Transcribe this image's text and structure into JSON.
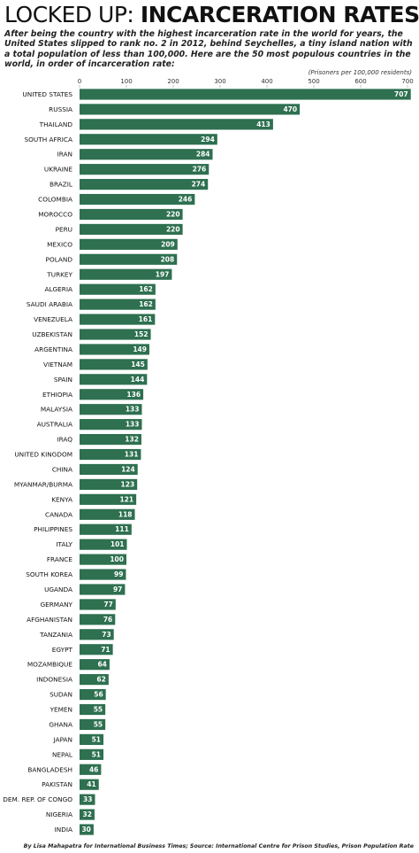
{
  "chart_data": {
    "type": "bar",
    "orientation": "horizontal",
    "title": "LOCKED UP:",
    "title_emphasis": "INCARCERATION RATES",
    "subtitle": "After being the country with the highest incarceration rate in the world for years, the United States slipped to rank no. 2 in 2012, behind Seychelles, a tiny island nation with a total population of less than 100,000. Here are the 50 most populous countries in the world, in order of incarceration rate:",
    "axis_label": "(Prisoners per 100,000 residents)",
    "categories": [
      "UNITED STATES",
      "RUSSIA",
      "THAILAND",
      "SOUTH AFRICA",
      "IRAN",
      "UKRAINE",
      "BRAZIL",
      "COLOMBIA",
      "MOROCCO",
      "PERU",
      "MEXICO",
      "POLAND",
      "TURKEY",
      "ALGERIA",
      "SAUDI ARABIA",
      "VENEZUELA",
      "UZBEKISTAN",
      "ARGENTINA",
      "VIETNAM",
      "SPAIN",
      "ETHIOPIA",
      "MALAYSIA",
      "AUSTRALIA",
      "IRAQ",
      "UNITED KINGDOM",
      "CHINA",
      "MYANMAR/BURMA",
      "KENYA",
      "CANADA",
      "PHILIPPINES",
      "ITALY",
      "FRANCE",
      "SOUTH KOREA",
      "UGANDA",
      "GERMANY",
      "AFGHANISTAN",
      "TANZANIA",
      "EGYPT",
      "MOZAMBIQUE",
      "INDONESIA",
      "SUDAN",
      "YEMEN",
      "GHANA",
      "JAPAN",
      "NEPAL",
      "BANGLADESH",
      "PAKISTAN",
      "DEM. REP. OF CONGO",
      "NIGERIA",
      "INDIA"
    ],
    "values": [
      707,
      470,
      413,
      294,
      284,
      276,
      274,
      246,
      220,
      220,
      209,
      208,
      197,
      162,
      162,
      161,
      152,
      149,
      145,
      144,
      136,
      133,
      133,
      132,
      131,
      124,
      123,
      121,
      118,
      111,
      101,
      100,
      99,
      97,
      77,
      76,
      73,
      71,
      64,
      62,
      56,
      55,
      55,
      51,
      51,
      46,
      41,
      33,
      32,
      30
    ],
    "color": "#2e7050",
    "xlim": [
      0,
      700
    ],
    "xticks": [
      0,
      100,
      200,
      300,
      400,
      500,
      600,
      700
    ],
    "source": "By Lisa Mahapatra for International Business Times; Source: International Centre for Prison Studies, Prison Population Rate"
  }
}
